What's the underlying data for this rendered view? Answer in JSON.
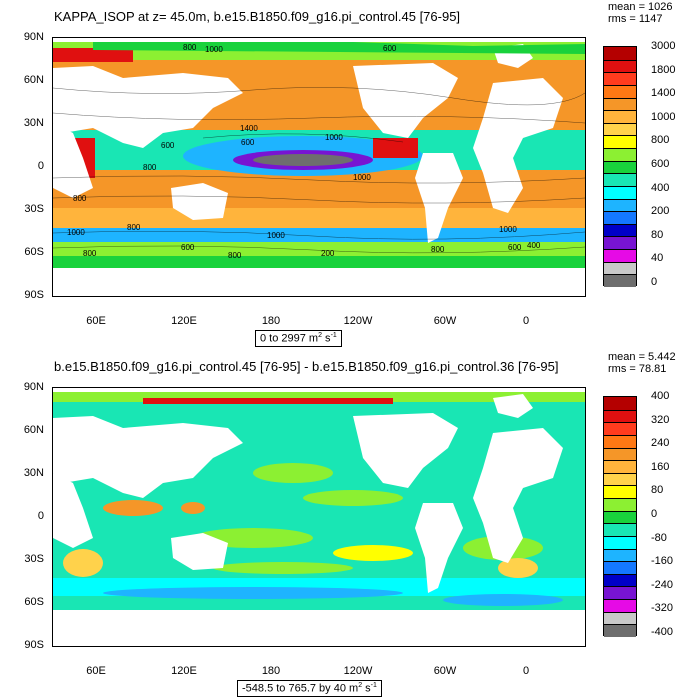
{
  "top_panel": {
    "title": "KAPPA_ISOP at z=  45.0m, b.e15.B1850.f09_g16.pi_control.45 [76-95]",
    "mean": "mean = 1026",
    "rms": "rms = 1147",
    "range_label": "0 to 2997 m",
    "range_unit_sup": "2",
    "range_unit_tail": " s",
    "range_unit_sup2": "-1",
    "colorbar_labels": [
      "3000",
      "1800",
      "1400",
      "1000",
      "800",
      "600",
      "400",
      "200",
      "80",
      "40",
      "0"
    ],
    "colorbar_colors": [
      "#b40000",
      "#e01010",
      "#ff3c1e",
      "#ff7814",
      "#f59628",
      "#ffb43c",
      "#ffd24b",
      "#ffff00",
      "#8cf032",
      "#19d23c",
      "#19e6b4",
      "#00ffff",
      "#1eb4ff",
      "#1478ff",
      "#0000c8",
      "#7814d2",
      "#e60ae6",
      "#c8c8c8",
      "#6e6e6e"
    ],
    "contour_labels": [
      "800",
      "1000",
      "600",
      "1400",
      "600",
      "1000",
      "600",
      "800",
      "1000",
      "800",
      "600",
      "800",
      "800",
      "1000",
      "600",
      "400",
      "200",
      "1000",
      "800",
      "600",
      "400"
    ]
  },
  "bottom_panel": {
    "title": "b.e15.B1850.f09_g16.pi_control.45 [76-95] - b.e15.B1850.f09_g16.pi_control.36 [76-95]",
    "mean": "mean = 5.442",
    "rms": "rms = 78.81",
    "range_label": "-548.5 to 765.7 by 40 m",
    "range_unit_sup": "2",
    "range_unit_tail": " s",
    "range_unit_sup2": "-1",
    "colorbar_labels": [
      "400",
      "320",
      "240",
      "160",
      "80",
      "0",
      "-80",
      "-160",
      "-240",
      "-320",
      "-400"
    ],
    "colorbar_colors": [
      "#b40000",
      "#e01010",
      "#ff3c1e",
      "#ff7814",
      "#f59628",
      "#ffb43c",
      "#ffd24b",
      "#ffff00",
      "#8cf032",
      "#19d23c",
      "#19e6b4",
      "#00ffff",
      "#1eb4ff",
      "#1478ff",
      "#0000c8",
      "#7814d2",
      "#e60ae6",
      "#c8c8c8",
      "#6e6e6e"
    ]
  },
  "axes": {
    "y_labels": [
      "90N",
      "60N",
      "30N",
      "0",
      "30S",
      "60S",
      "90S"
    ],
    "x_labels": [
      "60E",
      "120E",
      "180",
      "120W",
      "60W",
      "0"
    ]
  }
}
